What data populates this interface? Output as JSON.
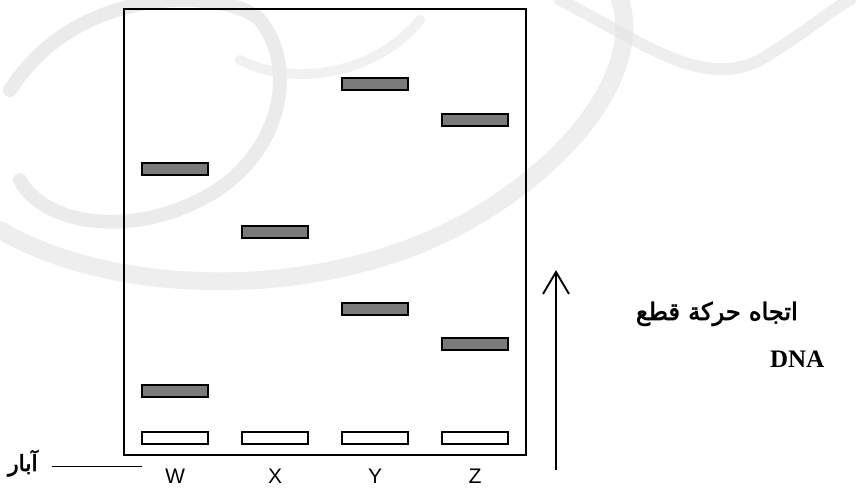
{
  "lanes": [
    "W",
    "X",
    "Y",
    "Z"
  ],
  "labels": {
    "wells": "آبار",
    "migration_direction_line1": "اتجاه حركة قطع",
    "migration_direction_line2": "DNA"
  },
  "colors": {
    "fragment_band": "#7b7b7b",
    "well_band": "#ffffff",
    "outline": "#000000",
    "watermark": "#e3e3e3"
  },
  "icons": {
    "direction_arrow": "arrow-up-icon"
  }
}
